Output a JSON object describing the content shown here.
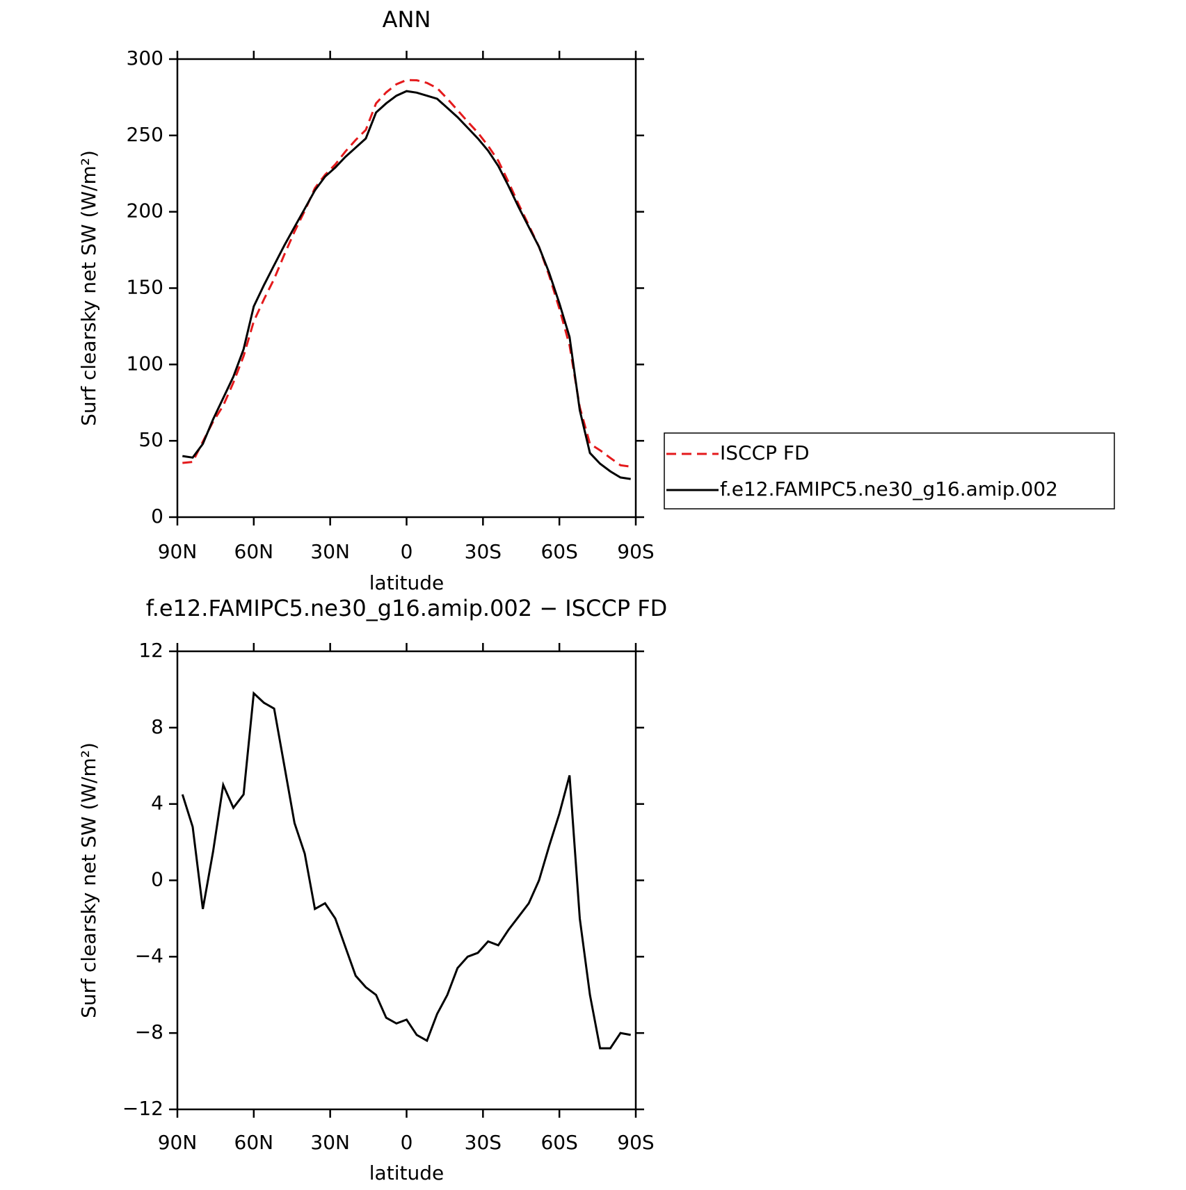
{
  "chart_data": [
    {
      "type": "line",
      "title": "ANN",
      "xlabel": "latitude",
      "ylabel": "Surf clearsky net SW (W/m²)",
      "x": [
        88,
        84,
        80,
        76,
        72,
        68,
        64,
        60,
        56,
        52,
        48,
        44,
        40,
        36,
        32,
        28,
        24,
        20,
        16,
        12,
        8,
        4,
        0,
        -4,
        -8,
        -12,
        -16,
        -20,
        -24,
        -28,
        -32,
        -36,
        -40,
        -44,
        -48,
        -52,
        -56,
        -60,
        -64,
        -68,
        -72,
        -76,
        -80,
        -84,
        -88
      ],
      "xlim": [
        90,
        -90
      ],
      "xticks": [
        {
          "value": 90,
          "label": "90N"
        },
        {
          "value": 60,
          "label": "60N"
        },
        {
          "value": 30,
          "label": "30N"
        },
        0,
        {
          "value": -30,
          "label": "30S"
        },
        {
          "value": -60,
          "label": "60S"
        },
        {
          "value": -90,
          "label": "90S"
        }
      ],
      "ylim": [
        0,
        300
      ],
      "yticks": [
        0,
        50,
        100,
        150,
        200,
        250,
        300
      ],
      "legend": "right",
      "series": [
        {
          "name": "ISCCP FD",
          "color": "#e41a1c",
          "dash": true,
          "values": [
            35.5,
            36.2,
            49.5,
            62.5,
            73,
            88.2,
            105.5,
            128.2,
            142.7,
            156,
            172,
            187,
            200.6,
            215.5,
            224.2,
            231,
            239.5,
            247,
            253.6,
            271,
            278.2,
            283.5,
            286.3,
            286.1,
            284.4,
            281,
            274,
            266.6,
            259,
            251.8,
            243.2,
            233.4,
            219.6,
            204.9,
            191.2,
            177,
            158.2,
            136.5,
            112.5,
            72,
            48,
            43.8,
            38.8,
            34,
            33.1
          ]
        },
        {
          "name": "f.e12.FAMIPC5.ne30_g16.amip.002",
          "color": "#000000",
          "dash": false,
          "values": [
            40,
            39,
            48,
            64,
            78,
            92,
            110,
            138,
            152,
            165,
            178,
            190,
            202,
            214,
            223,
            229,
            236,
            242,
            248,
            265,
            271,
            276,
            279,
            278,
            276,
            274,
            268,
            262,
            255,
            248,
            240,
            230,
            217,
            203,
            190,
            177,
            160,
            140,
            118,
            70,
            42,
            35,
            30,
            26,
            25
          ]
        }
      ]
    },
    {
      "type": "line",
      "title": "f.e12.FAMIPC5.ne30_g16.amip.002 − ISCCP FD",
      "xlabel": "latitude",
      "ylabel": "Surf clearsky net SW (W/m²)",
      "x": [
        88,
        84,
        80,
        76,
        72,
        68,
        64,
        60,
        56,
        52,
        48,
        44,
        40,
        36,
        32,
        28,
        24,
        20,
        16,
        12,
        8,
        4,
        0,
        -4,
        -8,
        -12,
        -16,
        -20,
        -24,
        -28,
        -32,
        -36,
        -40,
        -44,
        -48,
        -52,
        -56,
        -60,
        -64,
        -68,
        -72,
        -76,
        -80,
        -84,
        -88
      ],
      "xlim": [
        90,
        -90
      ],
      "xticks": [
        {
          "value": 90,
          "label": "90N"
        },
        {
          "value": 60,
          "label": "60N"
        },
        {
          "value": 30,
          "label": "30N"
        },
        0,
        {
          "value": -30,
          "label": "30S"
        },
        {
          "value": -60,
          "label": "60S"
        },
        {
          "value": -90,
          "label": "90S"
        }
      ],
      "ylim": [
        -12,
        12
      ],
      "yticks": [
        {
          "value": -12,
          "label": "−12"
        },
        {
          "value": -8,
          "label": "−8"
        },
        {
          "value": -4,
          "label": "−4"
        },
        0,
        4,
        8,
        12
      ],
      "series": [
        {
          "color": "#000000",
          "dash": false,
          "values": [
            4.5,
            2.8,
            -1.5,
            1.5,
            5,
            3.8,
            4.5,
            9.8,
            9.3,
            9,
            6,
            3,
            1.4,
            -1.5,
            -1.2,
            -2,
            -3.5,
            -5,
            -5.6,
            -6,
            -7.2,
            -7.5,
            -7.3,
            -8.1,
            -8.4,
            -7,
            -6,
            -4.6,
            -4,
            -3.8,
            -3.2,
            -3.4,
            -2.6,
            -1.9,
            -1.2,
            0,
            1.8,
            3.5,
            5.5,
            -2,
            -6,
            -8.8,
            -8.8,
            -8,
            -8.1
          ]
        }
      ]
    }
  ]
}
